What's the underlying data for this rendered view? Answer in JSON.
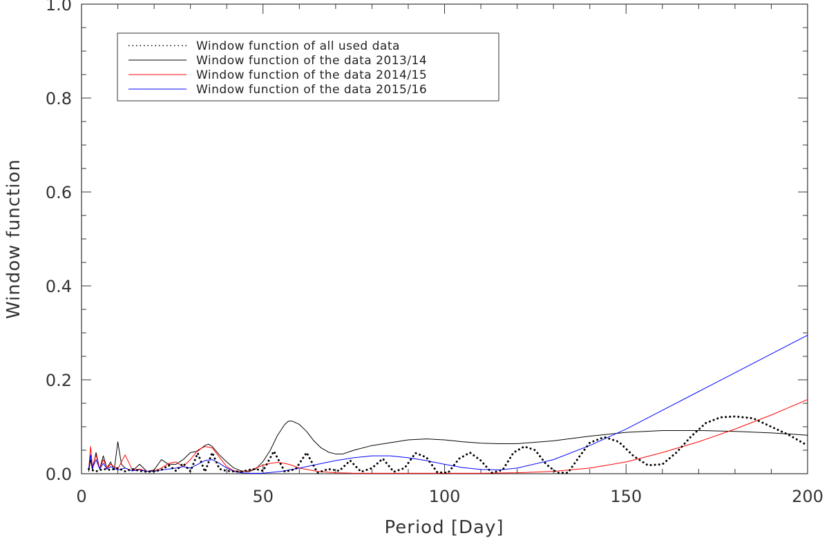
{
  "chart_data": {
    "type": "line",
    "title": "",
    "xlabel": "Period [Day]",
    "ylabel": "Window function",
    "xlim": [
      0,
      200
    ],
    "ylim": [
      0,
      1.0
    ],
    "x_ticks": [
      0,
      50,
      100,
      150,
      200
    ],
    "x_tick_labels": [
      "0",
      "50",
      "100",
      "150",
      "200"
    ],
    "y_ticks": [
      0.0,
      0.2,
      0.4,
      0.6,
      0.8,
      1.0
    ],
    "y_tick_labels": [
      "0.0",
      "0.2",
      "0.4",
      "0.6",
      "0.8",
      "1.0"
    ],
    "grid": false,
    "legend_position": "top-left",
    "series": [
      {
        "name": "Window function of all used data",
        "color": "#000000",
        "style": "dotted",
        "x": [
          2,
          4,
          6,
          8,
          10,
          12,
          14,
          16,
          18,
          20,
          22,
          24,
          26,
          28,
          30,
          32,
          34,
          36,
          38,
          40,
          42,
          44,
          46,
          48,
          50,
          53,
          56,
          59,
          62,
          65,
          68,
          71,
          74,
          77,
          80,
          83,
          86,
          89,
          92,
          95,
          98,
          101,
          104,
          107,
          110,
          113,
          116,
          119,
          122,
          125,
          128,
          131,
          134,
          137,
          140,
          144,
          148,
          152,
          156,
          160,
          164,
          168,
          172,
          176,
          180,
          185,
          190,
          195,
          200
        ],
        "y": [
          0.01,
          0.005,
          0.01,
          0.008,
          0.012,
          0.005,
          0.01,
          0.006,
          0.004,
          0.005,
          0.008,
          0.018,
          0.006,
          0.022,
          0.005,
          0.044,
          0.004,
          0.045,
          0.01,
          0.006,
          0.005,
          0.004,
          0.008,
          0.01,
          0.006,
          0.048,
          0.004,
          0.01,
          0.045,
          0.002,
          0.01,
          0.006,
          0.028,
          0.004,
          0.012,
          0.032,
          0.004,
          0.012,
          0.044,
          0.035,
          0.003,
          0.002,
          0.032,
          0.045,
          0.028,
          0.002,
          0.008,
          0.045,
          0.058,
          0.05,
          0.02,
          0.002,
          0.002,
          0.035,
          0.066,
          0.078,
          0.068,
          0.038,
          0.018,
          0.02,
          0.046,
          0.08,
          0.108,
          0.12,
          0.122,
          0.118,
          0.1,
          0.082,
          0.06
        ]
      },
      {
        "name": "Window function of the data 2013/14",
        "color": "#000000",
        "style": "solid",
        "x": [
          2,
          2.5,
          3,
          4,
          5,
          6,
          7,
          8,
          9,
          10,
          11,
          12,
          14,
          16,
          18,
          20,
          22,
          24,
          26,
          28,
          30,
          32,
          34,
          35,
          36,
          38,
          40,
          42,
          44,
          46,
          48,
          50,
          52,
          54,
          56,
          57,
          58,
          60,
          62,
          64,
          66,
          68,
          70,
          72,
          75,
          80,
          85,
          90,
          95,
          100,
          105,
          110,
          115,
          120,
          130,
          140,
          150,
          160,
          170,
          180,
          190,
          200
        ],
        "y": [
          0.005,
          0.03,
          0.008,
          0.045,
          0.01,
          0.038,
          0.012,
          0.025,
          0.008,
          0.068,
          0.02,
          0.012,
          0.006,
          0.02,
          0.005,
          0.008,
          0.03,
          0.02,
          0.02,
          0.03,
          0.045,
          0.048,
          0.06,
          0.063,
          0.058,
          0.04,
          0.025,
          0.012,
          0.006,
          0.004,
          0.01,
          0.026,
          0.05,
          0.082,
          0.105,
          0.112,
          0.112,
          0.105,
          0.09,
          0.07,
          0.055,
          0.046,
          0.042,
          0.042,
          0.05,
          0.06,
          0.066,
          0.072,
          0.074,
          0.072,
          0.068,
          0.065,
          0.064,
          0.064,
          0.07,
          0.08,
          0.088,
          0.092,
          0.092,
          0.09,
          0.087,
          0.082
        ]
      },
      {
        "name": "Window function of the data 2014/15",
        "color": "#ff0000",
        "style": "solid",
        "x": [
          2,
          2.5,
          3,
          4,
          5,
          6,
          7,
          8,
          10,
          11,
          12,
          14,
          16,
          18,
          20,
          22,
          24,
          26,
          28,
          30,
          32,
          34,
          36,
          38,
          40,
          42,
          44,
          46,
          48,
          50,
          52,
          54,
          56,
          58,
          60,
          65,
          70,
          75,
          80,
          90,
          100,
          110,
          120,
          130,
          140,
          150,
          160,
          170,
          180,
          190,
          200
        ],
        "y": [
          0.01,
          0.058,
          0.015,
          0.04,
          0.01,
          0.03,
          0.012,
          0.02,
          0.01,
          0.025,
          0.04,
          0.008,
          0.01,
          0.005,
          0.006,
          0.012,
          0.022,
          0.025,
          0.015,
          0.03,
          0.05,
          0.058,
          0.055,
          0.035,
          0.015,
          0.006,
          0.004,
          0.006,
          0.012,
          0.018,
          0.022,
          0.024,
          0.022,
          0.018,
          0.012,
          0.005,
          0.002,
          0.001,
          0.001,
          0.001,
          0.001,
          0.001,
          0.002,
          0.005,
          0.012,
          0.025,
          0.045,
          0.068,
          0.095,
          0.125,
          0.158
        ]
      },
      {
        "name": "Window function of the data 2015/16",
        "color": "#0000ff",
        "style": "solid",
        "x": [
          2,
          2.5,
          3,
          4,
          5,
          6,
          7,
          8,
          10,
          12,
          14,
          16,
          18,
          20,
          22,
          24,
          26,
          28,
          30,
          32,
          34,
          36,
          38,
          40,
          42,
          44,
          46,
          48,
          50,
          55,
          60,
          65,
          70,
          75,
          80,
          85,
          90,
          95,
          100,
          105,
          110,
          115,
          120,
          130,
          140,
          150,
          160,
          170,
          180,
          190,
          200
        ],
        "y": [
          0.01,
          0.04,
          0.012,
          0.03,
          0.01,
          0.022,
          0.01,
          0.015,
          0.008,
          0.012,
          0.006,
          0.008,
          0.005,
          0.005,
          0.008,
          0.01,
          0.012,
          0.015,
          0.012,
          0.02,
          0.028,
          0.03,
          0.022,
          0.012,
          0.005,
          0.002,
          0.001,
          0.001,
          0.001,
          0.005,
          0.012,
          0.02,
          0.028,
          0.034,
          0.038,
          0.038,
          0.034,
          0.028,
          0.02,
          0.013,
          0.009,
          0.008,
          0.012,
          0.03,
          0.06,
          0.095,
          0.135,
          0.175,
          0.215,
          0.255,
          0.295
        ]
      }
    ]
  }
}
